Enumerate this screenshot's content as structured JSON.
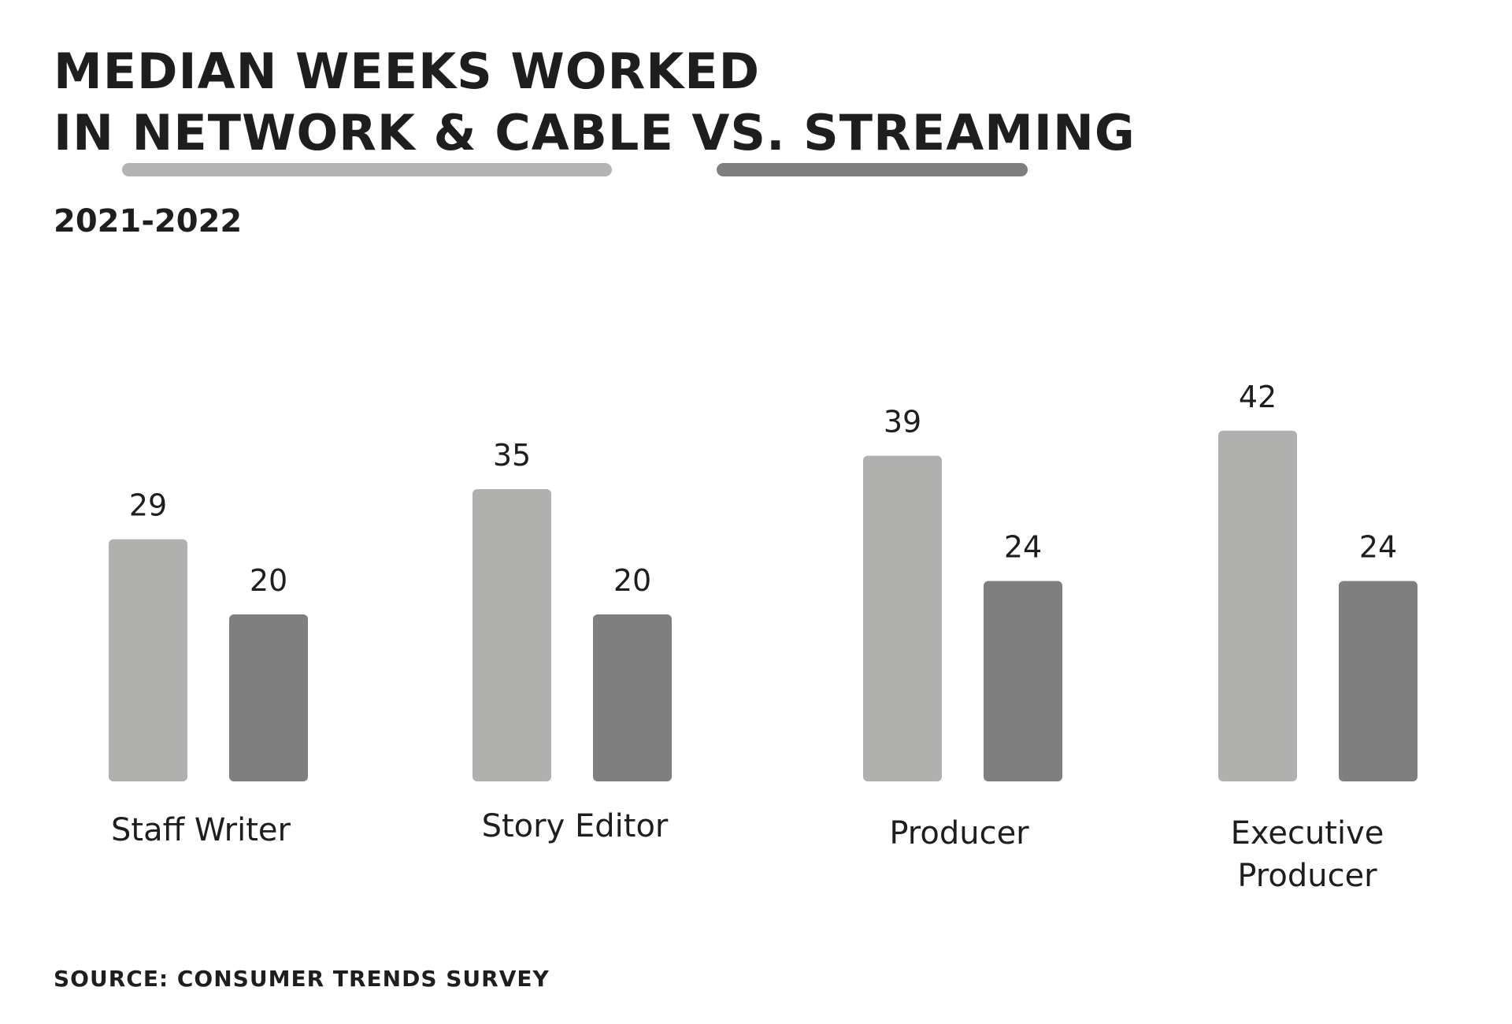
{
  "title_line1": "MEDIAN WEEKS WORKED",
  "title_line2_part1": "IN NETWORK & CABLE",
  "title_line2_part2": " VS. ",
  "title_line2_part3": "STREAMING",
  "subtitle": "2021-2022",
  "source": "SOURCE: CONSUMER TRENDS SURVEY",
  "colors": {
    "network_cable": "#b0b0ae",
    "streaming": "#7f7f7f",
    "text": "#1e1e1e"
  },
  "chart_data": {
    "type": "bar",
    "categories": [
      "Staff Writer",
      "Story Editor",
      "Producer",
      "Executive Producer"
    ],
    "series": [
      {
        "name": "NETWORK & CABLE",
        "values": [
          29,
          35,
          39,
          42
        ]
      },
      {
        "name": "STREAMING",
        "values": [
          20,
          20,
          24,
          24
        ]
      }
    ],
    "data_labels": true,
    "legend": "title-underlines",
    "grid": false,
    "ylim": [
      0,
      42
    ]
  }
}
